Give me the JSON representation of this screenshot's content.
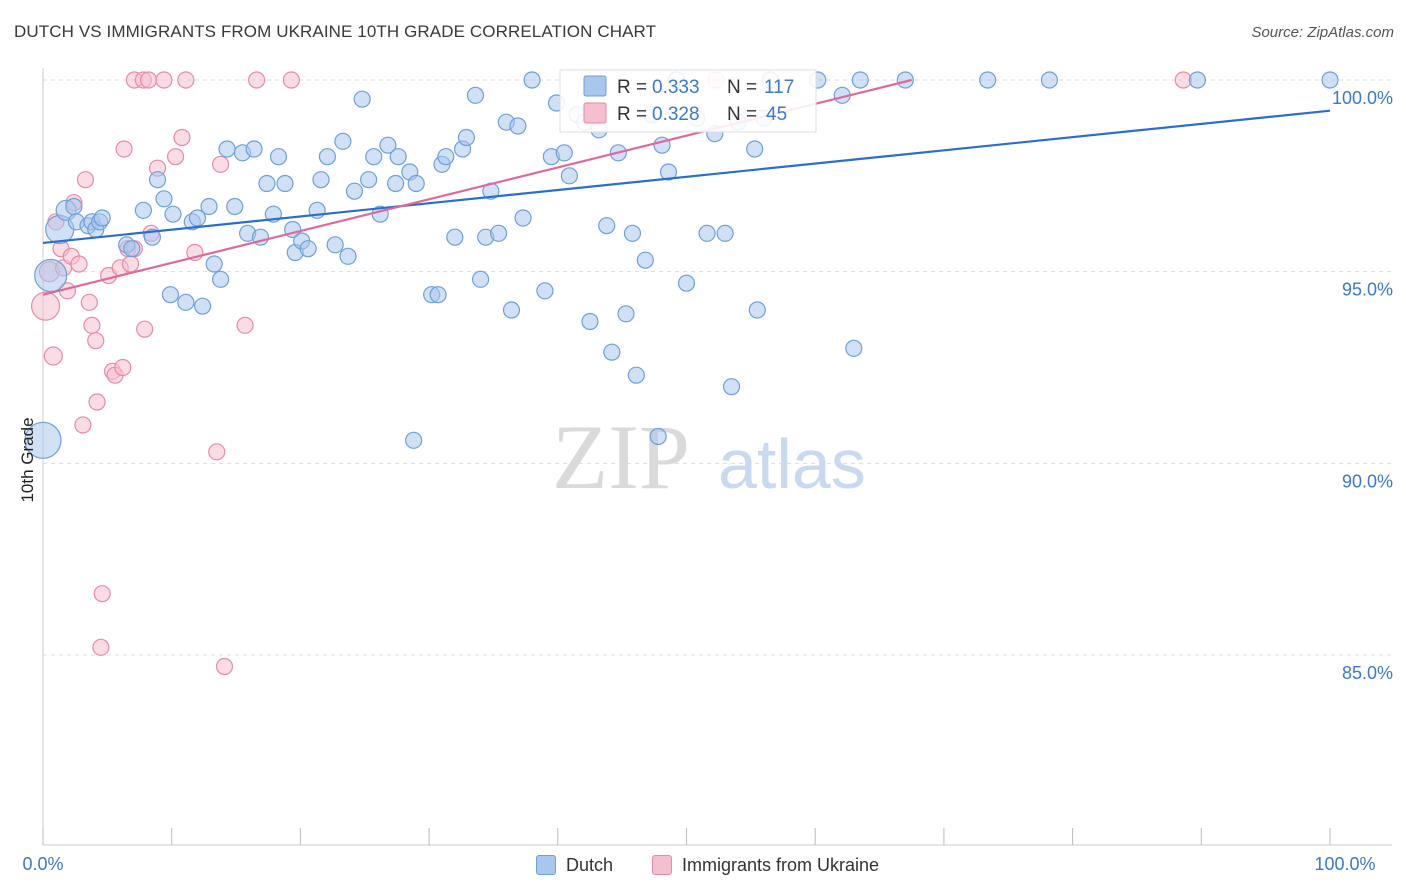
{
  "title": "DUTCH VS IMMIGRANTS FROM UKRAINE 10TH GRADE CORRELATION CHART",
  "source": "Source: ZipAtlas.com",
  "watermark": {
    "zip": "ZIP",
    "atlas": "atlas"
  },
  "legend": {
    "series": [
      {
        "r_label": "R =",
        "r_value": "0.333",
        "n_label": "N =",
        "n_value": "117"
      },
      {
        "r_label": "R =",
        "r_value": "0.328",
        "n_label": "N =",
        "n_value": "45"
      }
    ]
  },
  "bottom_legend": [
    "Dutch",
    "Immigrants from Ukraine"
  ],
  "colors": {
    "blue_fill": "#a9c6ec",
    "blue_stroke": "#6f9fd8",
    "blue_line": "#2a6fce",
    "pink_fill": "#f6bfd0",
    "pink_stroke": "#e88aa8",
    "pink_line": "#e0689a",
    "value_text": "#3e78c6",
    "grid": "#dcdcdc"
  },
  "chart_data": {
    "type": "scatter",
    "title": "DUTCH VS IMMIGRANTS FROM UKRAINE 10TH GRADE CORRELATION CHART",
    "xlabel": "",
    "ylabel": "10th Grade",
    "xlim": [
      0,
      100
    ],
    "ylim": [
      80.5,
      100.5
    ],
    "x_tick_labels": [
      "0.0%",
      "100.0%"
    ],
    "y_ticks": [
      85,
      90,
      95,
      100
    ],
    "y_tick_labels": [
      "85.0%",
      "90.0%",
      "95.0%",
      "100.0%"
    ],
    "grid": true,
    "series": [
      {
        "name": "Dutch",
        "r": 0.333,
        "n": 117,
        "trendline": {
          "x": [
            0,
            100
          ],
          "y": [
            95.75,
            99.2
          ]
        },
        "points": [
          [
            1.3,
            96.1,
            14
          ],
          [
            1.8,
            96.6,
            10
          ],
          [
            2.4,
            96.7,
            8
          ],
          [
            2.6,
            96.3,
            8
          ],
          [
            3.5,
            96.2,
            8
          ],
          [
            3.8,
            96.3,
            8
          ],
          [
            4.1,
            96.1,
            8
          ],
          [
            4.4,
            96.3,
            8
          ],
          [
            4.6,
            96.4,
            8
          ],
          [
            6.5,
            95.7,
            8
          ],
          [
            6.9,
            95.6,
            8
          ],
          [
            7.8,
            96.6,
            8
          ],
          [
            8.5,
            95.9,
            8
          ],
          [
            8.9,
            97.4,
            8
          ],
          [
            9.4,
            96.9,
            8
          ],
          [
            10.1,
            96.5,
            8
          ],
          [
            9.9,
            94.4,
            8
          ],
          [
            11.1,
            94.2,
            8
          ],
          [
            11.6,
            96.3,
            8
          ],
          [
            12.0,
            96.4,
            8
          ],
          [
            12.4,
            94.1,
            8
          ],
          [
            12.9,
            96.7,
            8
          ],
          [
            13.3,
            95.2,
            8
          ],
          [
            13.8,
            94.8,
            8
          ],
          [
            14.3,
            98.2,
            8
          ],
          [
            14.9,
            96.7,
            8
          ],
          [
            15.5,
            98.1,
            8
          ],
          [
            15.9,
            96.0,
            8
          ],
          [
            16.4,
            98.2,
            8
          ],
          [
            16.9,
            95.9,
            8
          ],
          [
            17.4,
            97.3,
            8
          ],
          [
            17.9,
            96.5,
            8
          ],
          [
            18.3,
            98.0,
            8
          ],
          [
            18.8,
            97.3,
            8
          ],
          [
            19.4,
            96.1,
            8
          ],
          [
            19.6,
            95.5,
            8
          ],
          [
            20.1,
            95.8,
            8
          ],
          [
            20.6,
            95.6,
            8
          ],
          [
            21.3,
            96.6,
            8
          ],
          [
            21.6,
            97.4,
            8
          ],
          [
            22.1,
            98.0,
            8
          ],
          [
            22.7,
            95.7,
            8
          ],
          [
            23.3,
            98.4,
            8
          ],
          [
            23.7,
            95.4,
            8
          ],
          [
            24.2,
            97.1,
            8
          ],
          [
            24.8,
            99.5,
            8
          ],
          [
            25.3,
            97.4,
            8
          ],
          [
            25.7,
            98.0,
            8
          ],
          [
            26.2,
            96.5,
            8
          ],
          [
            26.8,
            98.3,
            8
          ],
          [
            27.4,
            97.3,
            8
          ],
          [
            27.6,
            98.0,
            8
          ],
          [
            28.5,
            97.6,
            8
          ],
          [
            29.0,
            97.3,
            8
          ],
          [
            28.8,
            90.6,
            8
          ],
          [
            30.2,
            94.4,
            8
          ],
          [
            30.7,
            94.4,
            8
          ],
          [
            31.0,
            97.8,
            8
          ],
          [
            31.3,
            98.0,
            8
          ],
          [
            32.0,
            95.9,
            8
          ],
          [
            32.6,
            98.2,
            8
          ],
          [
            32.9,
            98.5,
            8
          ],
          [
            33.6,
            99.6,
            8
          ],
          [
            34.0,
            94.8,
            8
          ],
          [
            34.4,
            95.9,
            8
          ],
          [
            34.8,
            97.1,
            8
          ],
          [
            35.4,
            96.0,
            8
          ],
          [
            36.0,
            98.9,
            8
          ],
          [
            36.4,
            94.0,
            8
          ],
          [
            36.9,
            98.8,
            8
          ],
          [
            37.3,
            96.4,
            8
          ],
          [
            38.0,
            100.0,
            8
          ],
          [
            39.0,
            94.5,
            8
          ],
          [
            39.5,
            98.0,
            8
          ],
          [
            39.9,
            99.4,
            8
          ],
          [
            40.5,
            98.1,
            8
          ],
          [
            40.9,
            97.5,
            8
          ],
          [
            41.5,
            99.1,
            8
          ],
          [
            42.1,
            98.9,
            8
          ],
          [
            42.5,
            93.7,
            8
          ],
          [
            43.2,
            98.7,
            8
          ],
          [
            43.8,
            96.2,
            8
          ],
          [
            44.2,
            92.9,
            8
          ],
          [
            44.7,
            98.1,
            8
          ],
          [
            45.3,
            93.9,
            8
          ],
          [
            45.8,
            96.0,
            8
          ],
          [
            46.1,
            92.3,
            8
          ],
          [
            46.8,
            95.3,
            8
          ],
          [
            47.3,
            99.1,
            8
          ],
          [
            47.8,
            90.7,
            8
          ],
          [
            48.1,
            98.3,
            8
          ],
          [
            48.6,
            97.6,
            8
          ],
          [
            49.2,
            100.0,
            8
          ],
          [
            50.0,
            94.7,
            8
          ],
          [
            50.8,
            99.0,
            8
          ],
          [
            51.6,
            96.0,
            8
          ],
          [
            52.2,
            98.6,
            8
          ],
          [
            53.0,
            96.0,
            8
          ],
          [
            53.5,
            92.0,
            8
          ],
          [
            54.0,
            98.9,
            8
          ],
          [
            55.3,
            98.2,
            8
          ],
          [
            55.5,
            94.0,
            8
          ],
          [
            56.0,
            99.0,
            8
          ],
          [
            56.5,
            100.0,
            8
          ],
          [
            60.2,
            100.0,
            8
          ],
          [
            62.1,
            99.6,
            8
          ],
          [
            63.0,
            93.0,
            8
          ],
          [
            63.5,
            100.0,
            8
          ],
          [
            67.0,
            100.0,
            8
          ],
          [
            73.4,
            100.0,
            8
          ],
          [
            78.2,
            100.0,
            8
          ],
          [
            89.7,
            100.0,
            8
          ],
          [
            100.0,
            100.0,
            8
          ],
          [
            0.0,
            90.6,
            18
          ],
          [
            0.6,
            94.9,
            16
          ]
        ]
      },
      {
        "name": "Immigrants from Ukraine",
        "r": 0.328,
        "n": 45,
        "trendline": {
          "x": [
            0,
            67.5
          ],
          "y": [
            94.4,
            100.0
          ]
        },
        "points": [
          [
            0.2,
            94.1,
            14
          ],
          [
            0.5,
            95.0,
            10
          ],
          [
            0.8,
            92.8,
            9
          ],
          [
            1.0,
            96.3,
            8
          ],
          [
            1.4,
            95.6,
            8
          ],
          [
            1.6,
            95.1,
            8
          ],
          [
            1.9,
            94.5,
            8
          ],
          [
            2.2,
            95.4,
            8
          ],
          [
            2.4,
            96.8,
            8
          ],
          [
            2.8,
            95.2,
            8
          ],
          [
            3.1,
            91.0,
            8
          ],
          [
            3.3,
            97.4,
            8
          ],
          [
            3.6,
            94.2,
            8
          ],
          [
            3.8,
            93.6,
            8
          ],
          [
            4.1,
            93.2,
            8
          ],
          [
            4.2,
            91.6,
            8
          ],
          [
            4.6,
            86.6,
            8
          ],
          [
            4.5,
            85.2,
            8
          ],
          [
            5.1,
            94.9,
            8
          ],
          [
            5.4,
            92.4,
            8
          ],
          [
            5.6,
            92.3,
            8
          ],
          [
            6.0,
            95.1,
            8
          ],
          [
            6.2,
            92.5,
            8
          ],
          [
            6.3,
            98.2,
            8
          ],
          [
            6.6,
            95.6,
            8
          ],
          [
            6.8,
            95.2,
            8
          ],
          [
            7.1,
            95.6,
            8
          ],
          [
            7.1,
            100.0,
            8
          ],
          [
            7.8,
            100.0,
            8
          ],
          [
            7.9,
            93.5,
            8
          ],
          [
            8.2,
            100.0,
            8
          ],
          [
            8.4,
            96.0,
            8
          ],
          [
            8.9,
            97.7,
            8
          ],
          [
            9.4,
            100.0,
            8
          ],
          [
            10.3,
            98.0,
            8
          ],
          [
            10.8,
            98.5,
            8
          ],
          [
            11.1,
            100.0,
            8
          ],
          [
            11.8,
            95.5,
            8
          ],
          [
            13.5,
            90.3,
            8
          ],
          [
            13.8,
            97.8,
            8
          ],
          [
            14.1,
            84.7,
            8
          ],
          [
            15.7,
            93.6,
            8
          ],
          [
            16.6,
            100.0,
            8
          ],
          [
            19.3,
            100.0,
            8
          ],
          [
            52.3,
            100.0,
            8
          ],
          [
            88.6,
            100.0,
            8
          ]
        ]
      }
    ]
  }
}
